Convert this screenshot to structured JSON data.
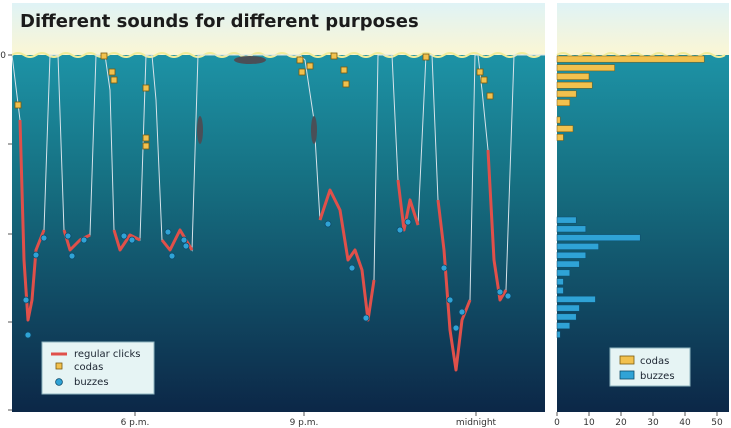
{
  "chart_data": [
    {
      "type": "line",
      "title": "Different sounds for different purposes",
      "x_ticks": [
        "6 p.m.",
        "9 p.m.",
        "midnight"
      ],
      "y_ticks": [
        "0",
        "",
        "",
        "",
        ""
      ],
      "legend": {
        "placement": "bottom-left",
        "entries": [
          {
            "label": "regular clicks",
            "marker": "line",
            "color": "#e0504a"
          },
          {
            "label": "codas",
            "marker": "square",
            "color": "#f2c14e"
          },
          {
            "label": "buzzes",
            "marker": "circle",
            "color": "#2fa3d6"
          }
        ]
      },
      "colors": {
        "sky": "#f6efc0",
        "sea_top": "#1c8fa3",
        "sea_bottom": "#0d2a4d",
        "dive_path": "#d7e3ea"
      }
    },
    {
      "type": "bar",
      "orientation": "horizontal",
      "x_ticks": [
        "0",
        "10",
        "20",
        "30",
        "40",
        "50"
      ],
      "xlim": [
        0,
        50
      ],
      "legend": {
        "placement": "bottom-right",
        "entries": [
          {
            "label": "codas",
            "color": "#f2c14e"
          },
          {
            "label": "buzzes",
            "color": "#2fa3d6"
          }
        ]
      },
      "series": [
        {
          "name": "codas",
          "color": "#f2c14e",
          "values": [
            46,
            18,
            10,
            11,
            6,
            4,
            0,
            1,
            5,
            2
          ]
        },
        {
          "name": "buzzes",
          "color": "#2fa3d6",
          "values": [
            6,
            9,
            26,
            13,
            9,
            7,
            4,
            2,
            2,
            12,
            7,
            6,
            4,
            1
          ]
        }
      ]
    }
  ]
}
